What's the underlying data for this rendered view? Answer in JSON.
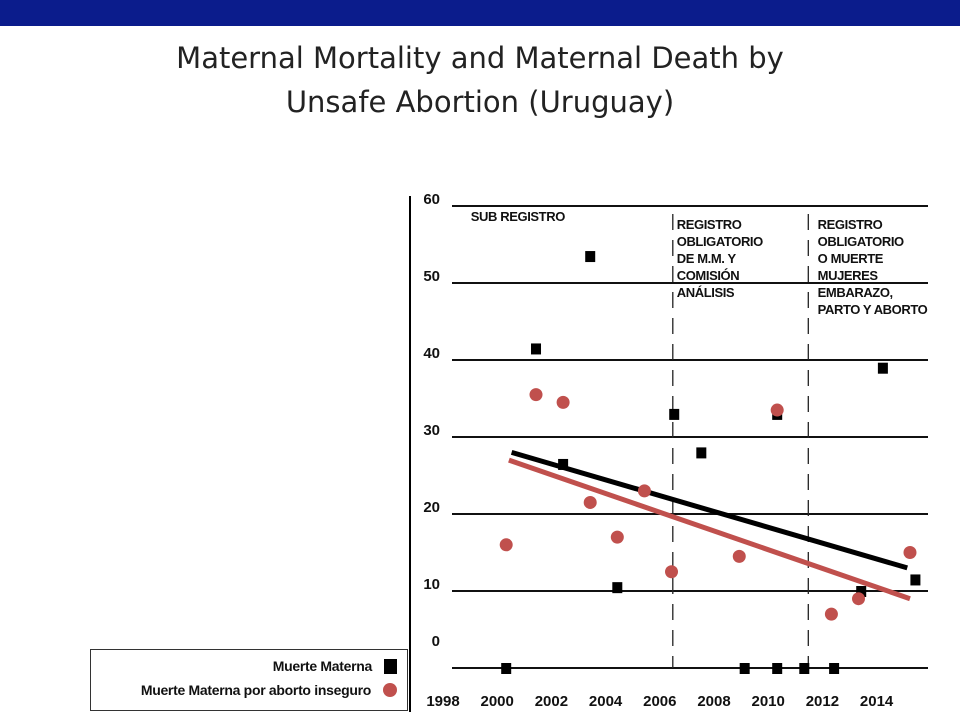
{
  "header": {
    "bar_color": "#0b1c8c"
  },
  "title_lines": [
    "Maternal Mortality and Maternal Death by",
    "Unsafe Abortion (Uruguay)"
  ],
  "chart_data": {
    "type": "scatter",
    "title": "Maternal Mortality and Maternal Death by Unsafe Abortion (Uruguay)",
    "xlabel": "",
    "ylabel": "",
    "xlim": [
      1998,
      2015.5
    ],
    "ylim": [
      0,
      60
    ],
    "y_ticks": [
      0,
      10,
      20,
      30,
      40,
      50,
      60
    ],
    "x_ticks": [
      1998,
      2000,
      2002,
      2004,
      2006,
      2008,
      2010,
      2012,
      2014
    ],
    "grid": "horizontal",
    "legend_position": "bottom-left",
    "annotations": [
      {
        "lines": [
          "SUB REGISTRO"
        ],
        "x": 1999.8,
        "y": 57
      },
      {
        "lines": [
          "REGISTRO",
          "OBLIGATORIO",
          "DE M.M. Y",
          "COMISIÓN",
          "ANÁLISIS"
        ],
        "x": 2007.4,
        "y": 56
      },
      {
        "lines": [
          "REGISTRO",
          "OBLIGATORIO",
          "O MUERTE",
          "MUJERES",
          "EMBARAZO,",
          "PARTO Y ABORTO"
        ],
        "x": 2012.6,
        "y": 56
      }
    ],
    "period_dividers": [
      2006,
      2011
    ],
    "series": [
      {
        "name": "Muerte Materna",
        "marker": "square",
        "color": "#000000",
        "points": [
          [
            2001.1,
            41.5
          ],
          [
            2002.1,
            26.5
          ],
          [
            2003.1,
            53.5
          ],
          [
            2004.1,
            10.5
          ],
          [
            2006.2,
            33
          ],
          [
            2007.2,
            28
          ],
          [
            2010.0,
            33
          ],
          [
            2000.0,
            0
          ],
          [
            2008.8,
            0
          ],
          [
            2010.0,
            0
          ],
          [
            2011.0,
            0
          ],
          [
            2012.1,
            0
          ],
          [
            2013.9,
            39
          ],
          [
            2015.1,
            11.5
          ],
          [
            2013.1,
            10
          ]
        ]
      },
      {
        "name": "Muerte Materna por aborto inseguro",
        "marker": "circle",
        "color": "#c0504d",
        "points": [
          [
            2000.0,
            16
          ],
          [
            2001.1,
            35.5
          ],
          [
            2002.1,
            34.5
          ],
          [
            2003.1,
            21.5
          ],
          [
            2004.1,
            17
          ],
          [
            2005.1,
            23
          ],
          [
            2006.1,
            12.5
          ],
          [
            2008.6,
            14.5
          ],
          [
            2010.0,
            33.5
          ],
          [
            2012.0,
            7
          ],
          [
            2013.0,
            9
          ],
          [
            2014.9,
            15
          ]
        ]
      }
    ],
    "trend_lines": [
      {
        "series": "Muerte Materna",
        "color": "#000000",
        "from": [
          2000.2,
          28
        ],
        "to": [
          2014.8,
          13
        ]
      },
      {
        "series": "Muerte Materna por aborto inseguro",
        "color": "#c0504d",
        "from": [
          2000.1,
          27
        ],
        "to": [
          2014.9,
          9
        ]
      }
    ]
  },
  "legend": {
    "items": [
      {
        "label": "Muerte Materna",
        "marker": "square"
      },
      {
        "label": "Muerte Materna por aborto inseguro",
        "marker": "circle"
      }
    ]
  }
}
